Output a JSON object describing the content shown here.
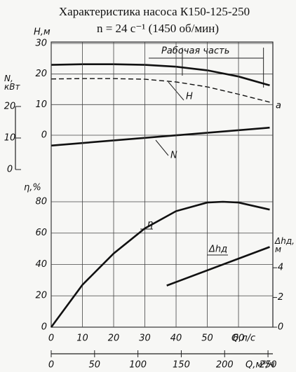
{
  "title": "Характеристика насоса К150-125-250",
  "subtitle": "n = 24 с⁻¹  (1450 об/мин)",
  "chart_data": [
    {
      "type": "line",
      "ylabel": "H,м",
      "y2label": "N, кВт",
      "xlim": [
        0,
        71
      ],
      "ylim": [
        0,
        30
      ],
      "yticks": [
        0,
        10,
        20,
        30
      ],
      "y2lim": [
        0,
        20
      ],
      "y2ticks": [
        0,
        10,
        20
      ],
      "working_range_label": "Рабочая часть",
      "working_range": [
        42,
        68
      ],
      "grid": true,
      "series": [
        {
          "name": "H",
          "color": "#111111",
          "x": [
            0,
            10,
            20,
            30,
            40,
            50,
            60,
            70
          ],
          "values": [
            23,
            23.2,
            23.2,
            23,
            22.4,
            21.2,
            19.2,
            16.3
          ]
        },
        {
          "name": "a",
          "color": "#111111",
          "dashed": true,
          "x": [
            0,
            10,
            20,
            30,
            40,
            50,
            60,
            70
          ],
          "values": [
            18.4,
            18.5,
            18.5,
            18.3,
            17.4,
            15.8,
            13.4,
            10.8
          ]
        },
        {
          "name": "N",
          "color": "#111111",
          "axis": "y2",
          "x": [
            0,
            70
          ],
          "values": [
            7.6,
            13.3
          ]
        }
      ]
    },
    {
      "type": "line",
      "ylabel": "η,%",
      "y2label": "Δhд, м",
      "xlabel": "Q,л/с",
      "x2label": "Q,м³/ч",
      "xlim": [
        0,
        71
      ],
      "xticks": [
        0,
        10,
        20,
        30,
        40,
        50,
        60
      ],
      "x2lim": [
        0,
        255.6
      ],
      "x2ticks": [
        0,
        50,
        100,
        150,
        200,
        250
      ],
      "ylim": [
        0,
        90
      ],
      "yticks": [
        0,
        20,
        40,
        60,
        80
      ],
      "y2lim": [
        0,
        9.5
      ],
      "y2ticks": [
        0,
        2,
        4
      ],
      "grid": true,
      "series": [
        {
          "name": "η",
          "color": "#111111",
          "x": [
            0,
            10,
            20,
            30,
            40,
            50,
            55,
            60,
            70
          ],
          "values": [
            0,
            27,
            47,
            63,
            74,
            79.5,
            80,
            79.5,
            75
          ]
        },
        {
          "name": "Δhд",
          "color": "#111111",
          "axis": "y2",
          "x": [
            37,
            70
          ],
          "values": [
            2.8,
            5.4
          ]
        }
      ]
    }
  ]
}
